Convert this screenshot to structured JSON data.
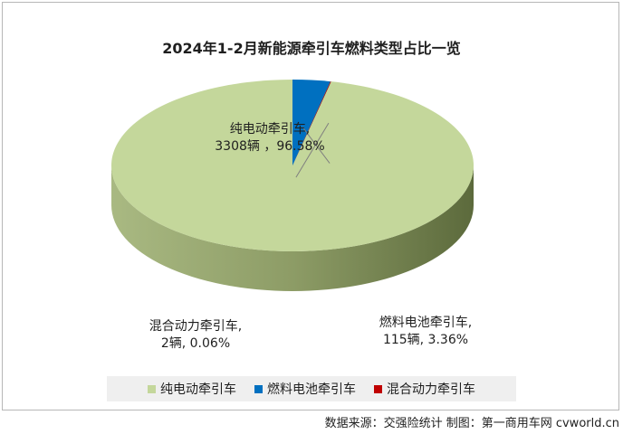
{
  "chart_data": {
    "type": "pie",
    "title": "2024年1-2月新能源牵引车燃料类型占比一览",
    "slices": [
      {
        "name": "纯电动牵引车",
        "units": 3308,
        "unit_text": "3308辆",
        "percent": 96.58,
        "percent_text": "96.58%",
        "color": "#c4d79b",
        "side_color": "#9aab72"
      },
      {
        "name": "燃料电池牵引车",
        "units": 115,
        "unit_text": "115辆",
        "percent": 3.36,
        "percent_text": "3.36%",
        "color": "#0070c0",
        "side_color": "#1f3a5f"
      },
      {
        "name": "混合动力牵引车",
        "units": 2,
        "unit_text": "2辆",
        "percent": 0.06,
        "percent_text": "0.06%",
        "color": "#c00000",
        "side_color": "#7a0000"
      }
    ],
    "labels": {
      "bev_line1": "纯电动牵引车,",
      "bev_line2": "3308辆 ，96.58%",
      "fcev_line1": "燃料电池牵引车,",
      "fcev_line2": "115辆, 3.36%",
      "hybrid_line1": "混合动力牵引车,",
      "hybrid_line2": "2辆, 0.06%"
    },
    "legend": [
      "纯电动牵引车",
      "燃料电池牵引车",
      "混合动力牵引车"
    ],
    "legend_position": "bottom"
  },
  "footer": {
    "source": "数据来源：交强险统计 制图：第一商用车网 cvworld.cn"
  }
}
